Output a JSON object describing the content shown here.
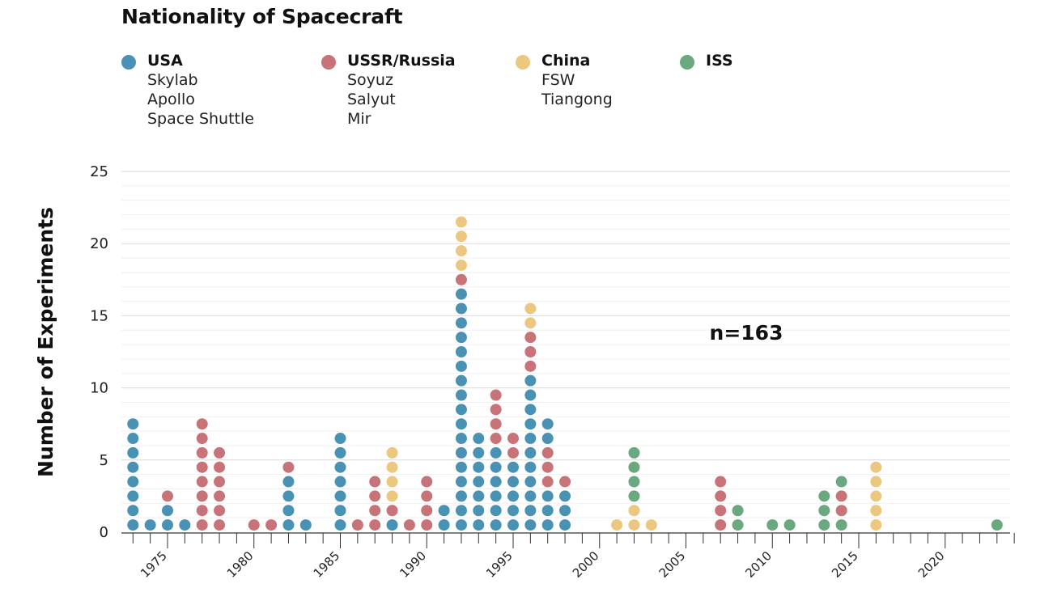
{
  "chart_data": {
    "type": "scatter",
    "title": "Nationality of Spacecraft",
    "xlabel": "",
    "ylabel": "Number of Experiments",
    "xlim": [
      1972,
      2024
    ],
    "ylim": [
      0,
      25
    ],
    "x_ticks": [
      1975,
      1980,
      1985,
      1990,
      1995,
      2000,
      2005,
      2010,
      2015,
      2020
    ],
    "y_ticks": [
      0,
      5,
      10,
      15,
      20,
      25
    ],
    "grid": true,
    "legend_position": "top",
    "annotation": "n=163",
    "series": [
      {
        "name": "USA",
        "color": "#4a92b4",
        "members": [
          "Skylab",
          "Apollo",
          "Space Shuttle"
        ]
      },
      {
        "name": "USSR/Russia",
        "color": "#c87377",
        "members": [
          "Soyuz",
          "Salyut",
          "Mir"
        ]
      },
      {
        "name": "China",
        "color": "#ecc77f",
        "members": [
          "FSW",
          "Tiangong"
        ]
      },
      {
        "name": "ISS",
        "color": "#6aa87d",
        "members": []
      }
    ],
    "stacks": [
      {
        "year": 1973,
        "USA": 8
      },
      {
        "year": 1974,
        "USA": 1
      },
      {
        "year": 1975,
        "USA": 2,
        "USSR/Russia": 1
      },
      {
        "year": 1976,
        "USA": 1
      },
      {
        "year": 1977,
        "USSR/Russia": 8
      },
      {
        "year": 1978,
        "USSR/Russia": 6
      },
      {
        "year": 1980,
        "USSR/Russia": 1
      },
      {
        "year": 1981,
        "USSR/Russia": 1
      },
      {
        "year": 1982,
        "USA": 4,
        "USSR/Russia": 1
      },
      {
        "year": 1983,
        "USA": 1
      },
      {
        "year": 1985,
        "USA": 7
      },
      {
        "year": 1986,
        "USSR/Russia": 1
      },
      {
        "year": 1987,
        "USSR/Russia": 4
      },
      {
        "year": 1988,
        "USA": 1,
        "USSR/Russia": 1,
        "China": 4
      },
      {
        "year": 1989,
        "USSR/Russia": 1
      },
      {
        "year": 1990,
        "USSR/Russia": 4
      },
      {
        "year": 1991,
        "USA": 2
      },
      {
        "year": 1992,
        "USA": 17,
        "USSR/Russia": 1,
        "China": 4
      },
      {
        "year": 1993,
        "USA": 7
      },
      {
        "year": 1994,
        "USA": 6,
        "USSR/Russia": 4
      },
      {
        "year": 1995,
        "USA": 5,
        "USSR/Russia": 2
      },
      {
        "year": 1996,
        "USA": 11,
        "USSR/Russia": 3,
        "China": 2
      },
      {
        "year": 1997,
        "USA": 3,
        "USSR/Russia": 3,
        "USA_top": 2
      },
      {
        "year": 1998,
        "USA": 3,
        "USSR/Russia": 1
      },
      {
        "year": 2001,
        "China": 1
      },
      {
        "year": 2002,
        "China": 2,
        "ISS": 4
      },
      {
        "year": 2003,
        "China": 1
      },
      {
        "year": 2007,
        "USSR/Russia": 4
      },
      {
        "year": 2008,
        "ISS": 2
      },
      {
        "year": 2010,
        "ISS": 1
      },
      {
        "year": 2011,
        "ISS": 1
      },
      {
        "year": 2013,
        "ISS": 3
      },
      {
        "year": 2014,
        "ISS": 1,
        "USSR/Russia": 2,
        "ISS_top": 1
      },
      {
        "year": 2016,
        "China": 5
      },
      {
        "year": 2023,
        "ISS": 1
      }
    ]
  }
}
